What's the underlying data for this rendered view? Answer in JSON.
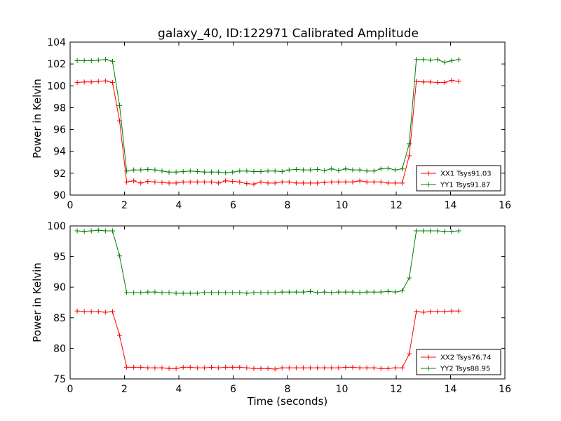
{
  "title": "galaxy_40, ID:122971 Calibrated Amplitude",
  "colors": {
    "XX": "#ff0000",
    "YY": "#008000",
    "axis": "#000000"
  },
  "chart_data": [
    {
      "type": "line",
      "xlim": [
        0,
        16
      ],
      "ylim": [
        90,
        104
      ],
      "xticks": [
        0,
        2,
        4,
        6,
        8,
        10,
        12,
        14,
        16
      ],
      "yticks": [
        90,
        92,
        94,
        96,
        98,
        100,
        102,
        104
      ],
      "xlabel": "",
      "ylabel": "Power in Kelvin",
      "legend_position": "bottom-right",
      "x": [
        0.26,
        0.52,
        0.78,
        1.04,
        1.3,
        1.56,
        1.82,
        2.08,
        2.34,
        2.6,
        2.86,
        3.12,
        3.38,
        3.64,
        3.9,
        4.16,
        4.42,
        4.68,
        4.94,
        5.2,
        5.46,
        5.72,
        5.98,
        6.24,
        6.5,
        6.76,
        7.02,
        7.28,
        7.54,
        7.8,
        8.06,
        8.32,
        8.58,
        8.84,
        9.1,
        9.36,
        9.62,
        9.88,
        10.14,
        10.4,
        10.66,
        10.92,
        11.18,
        11.44,
        11.7,
        11.96,
        12.22,
        12.48,
        12.74,
        13.0,
        13.26,
        13.52,
        13.78,
        14.04,
        14.3
      ],
      "series": [
        {
          "name": "XX1 Tsys91.03",
          "color": "#ff0000",
          "values": [
            100.3,
            100.35,
            100.35,
            100.4,
            100.45,
            100.3,
            96.8,
            91.2,
            91.3,
            91.1,
            91.25,
            91.2,
            91.15,
            91.1,
            91.1,
            91.2,
            91.2,
            91.2,
            91.2,
            91.2,
            91.1,
            91.3,
            91.25,
            91.2,
            91.05,
            91.0,
            91.2,
            91.1,
            91.1,
            91.2,
            91.2,
            91.1,
            91.1,
            91.1,
            91.1,
            91.15,
            91.2,
            91.2,
            91.2,
            91.2,
            91.3,
            91.2,
            91.2,
            91.2,
            91.1,
            91.1,
            91.1,
            93.6,
            100.4,
            100.35,
            100.35,
            100.3,
            100.3,
            100.5,
            100.4
          ]
        },
        {
          "name": "YY1 Tsys91.87",
          "color": "#008000",
          "values": [
            102.3,
            102.3,
            102.3,
            102.35,
            102.4,
            102.25,
            98.2,
            92.2,
            92.3,
            92.3,
            92.35,
            92.3,
            92.2,
            92.1,
            92.1,
            92.15,
            92.2,
            92.15,
            92.1,
            92.1,
            92.1,
            92.05,
            92.1,
            92.2,
            92.2,
            92.15,
            92.15,
            92.2,
            92.2,
            92.15,
            92.3,
            92.35,
            92.3,
            92.3,
            92.35,
            92.25,
            92.4,
            92.25,
            92.4,
            92.3,
            92.3,
            92.2,
            92.2,
            92.4,
            92.45,
            92.3,
            92.4,
            94.7,
            102.4,
            102.4,
            102.35,
            102.4,
            102.15,
            102.3,
            102.4
          ]
        }
      ]
    },
    {
      "type": "line",
      "xlim": [
        0,
        16
      ],
      "ylim": [
        75,
        100
      ],
      "xticks": [
        0,
        2,
        4,
        6,
        8,
        10,
        12,
        14,
        16
      ],
      "yticks": [
        75,
        80,
        85,
        90,
        95,
        100
      ],
      "xlabel": "Time (seconds)",
      "ylabel": "Power in Kelvin",
      "legend_position": "bottom-right",
      "x": [
        0.26,
        0.52,
        0.78,
        1.04,
        1.3,
        1.56,
        1.82,
        2.08,
        2.34,
        2.6,
        2.86,
        3.12,
        3.38,
        3.64,
        3.9,
        4.16,
        4.42,
        4.68,
        4.94,
        5.2,
        5.46,
        5.72,
        5.98,
        6.24,
        6.5,
        6.76,
        7.02,
        7.28,
        7.54,
        7.8,
        8.06,
        8.32,
        8.58,
        8.84,
        9.1,
        9.36,
        9.62,
        9.88,
        10.14,
        10.4,
        10.66,
        10.92,
        11.18,
        11.44,
        11.7,
        11.96,
        12.22,
        12.48,
        12.74,
        13.0,
        13.26,
        13.52,
        13.78,
        14.04,
        14.3
      ],
      "series": [
        {
          "name": "XX2 Tsys76.74",
          "color": "#ff0000",
          "values": [
            86.1,
            86.0,
            86.0,
            86.0,
            85.9,
            86.0,
            82.1,
            76.9,
            76.9,
            76.9,
            76.8,
            76.8,
            76.8,
            76.7,
            76.7,
            76.9,
            76.9,
            76.8,
            76.8,
            76.9,
            76.8,
            76.9,
            76.9,
            76.9,
            76.8,
            76.7,
            76.7,
            76.7,
            76.6,
            76.8,
            76.8,
            76.8,
            76.8,
            76.8,
            76.8,
            76.8,
            76.8,
            76.8,
            76.9,
            76.9,
            76.8,
            76.8,
            76.8,
            76.7,
            76.7,
            76.8,
            76.8,
            79.1,
            86.0,
            85.9,
            86.0,
            86.0,
            86.0,
            86.1,
            86.1
          ]
        },
        {
          "name": "YY2 Tsys88.95",
          "color": "#008000",
          "values": [
            99.2,
            99.1,
            99.2,
            99.3,
            99.2,
            99.2,
            95.1,
            89.1,
            89.1,
            89.1,
            89.2,
            89.2,
            89.1,
            89.1,
            89.0,
            89.0,
            89.0,
            89.0,
            89.1,
            89.1,
            89.1,
            89.1,
            89.1,
            89.1,
            89.0,
            89.1,
            89.1,
            89.1,
            89.1,
            89.2,
            89.2,
            89.2,
            89.2,
            89.3,
            89.1,
            89.2,
            89.1,
            89.2,
            89.2,
            89.2,
            89.1,
            89.2,
            89.2,
            89.2,
            89.3,
            89.2,
            89.4,
            91.5,
            99.2,
            99.2,
            99.2,
            99.2,
            99.1,
            99.1,
            99.2
          ]
        }
      ]
    }
  ]
}
